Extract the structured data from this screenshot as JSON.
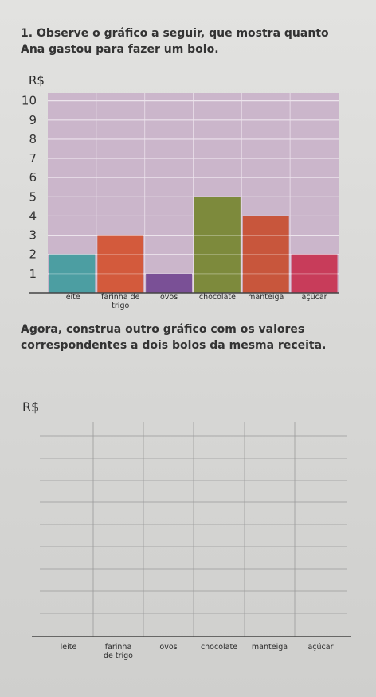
{
  "question": {
    "number": "1.",
    "text": "Observe o gráfico a seguir, que mostra quanto Ana gastou para fazer um bolo."
  },
  "chart_data": {
    "type": "bar",
    "ylabel": "R$",
    "categories": [
      "leite",
      "farinha de trigo",
      "ovos",
      "chocolate",
      "manteiga",
      "açúcar"
    ],
    "values": [
      2,
      3,
      1,
      5,
      4,
      2
    ],
    "colors": [
      "#4c9ea2",
      "#d35a3c",
      "#7a5096",
      "#7d8a3c",
      "#c8563c",
      "#c83c5a"
    ],
    "ylim": [
      0,
      10.4
    ],
    "yticks": [
      1,
      2,
      3,
      4,
      5,
      6,
      7,
      8,
      9,
      10
    ],
    "grid": true
  },
  "instruction": "Agora, construa outro gráfico com os valores correspondentes a dois bolos da mesma receita.",
  "blank_chart": {
    "ylabel": "R$",
    "categories": [
      "leite",
      "farinha de trigo",
      "ovos",
      "chocolate",
      "manteiga",
      "açúcar"
    ]
  }
}
